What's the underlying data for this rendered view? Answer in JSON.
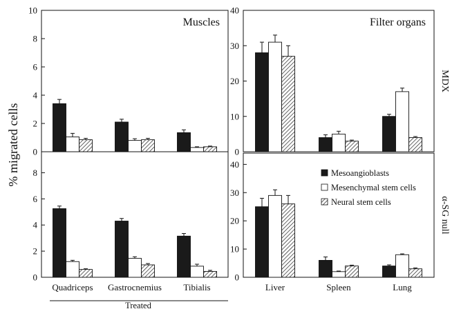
{
  "colors": {
    "mesoangioblasts": "#1a1a1a",
    "mesenchymal": "#ffffff",
    "neural": "hatched"
  },
  "figure": {
    "ylabel": "% migrated cells",
    "treated_label": "Treated"
  },
  "legend": [
    {
      "key": "meso",
      "label": "Mesoangioblasts"
    },
    {
      "key": "mesen",
      "label": "Mesenchymal stem cells"
    },
    {
      "key": "neural",
      "label": "Neural stem cells"
    }
  ],
  "chart_data": [
    {
      "type": "bar",
      "title": "Muscles",
      "panel_row": "MDX",
      "categories": [
        "Quadriceps",
        "Gastrocnemius",
        "Tibialis"
      ],
      "ylim": [
        0,
        10
      ],
      "yticks": [
        "0",
        "2",
        "4",
        "6",
        "8",
        "10"
      ],
      "series": [
        {
          "key": "meso",
          "values": [
            3.4,
            2.1,
            1.35
          ],
          "errors": [
            0.3,
            0.2,
            0.2
          ]
        },
        {
          "key": "mesen",
          "values": [
            1.05,
            0.8,
            0.3
          ],
          "errors": [
            0.25,
            0.12,
            0.05
          ]
        },
        {
          "key": "neural",
          "values": [
            0.85,
            0.85,
            0.35
          ],
          "errors": [
            0.1,
            0.1,
            0.05
          ]
        }
      ]
    },
    {
      "type": "bar",
      "title": "Filter organs",
      "panel_row": "MDX",
      "row_label": "MDX",
      "categories": [
        "Liver",
        "Spleen",
        "Lung"
      ],
      "ylim": [
        0,
        40
      ],
      "yticks": [
        "0",
        "10",
        "20",
        "30",
        "40"
      ],
      "series": [
        {
          "key": "meso",
          "values": [
            28,
            4,
            10
          ],
          "errors": [
            3,
            0.8,
            0.6
          ]
        },
        {
          "key": "mesen",
          "values": [
            31,
            5,
            17
          ],
          "errors": [
            2,
            0.8,
            1
          ]
        },
        {
          "key": "neural",
          "values": [
            27,
            3,
            4
          ],
          "errors": [
            3,
            0.3,
            0.3
          ]
        }
      ]
    },
    {
      "type": "bar",
      "panel_row": "alpha-SG null",
      "categories": [
        "Quadriceps",
        "Gastrocnemius",
        "Tibialis"
      ],
      "ylim": [
        0,
        9.5
      ],
      "yticks": [
        "0",
        "2",
        "4",
        "6",
        "8"
      ],
      "series": [
        {
          "key": "meso",
          "values": [
            5.25,
            4.3,
            3.15
          ],
          "errors": [
            0.2,
            0.2,
            0.2
          ]
        },
        {
          "key": "mesen",
          "values": [
            1.2,
            1.45,
            0.85
          ],
          "errors": [
            0.1,
            0.12,
            0.15
          ]
        },
        {
          "key": "neural",
          "values": [
            0.6,
            0.95,
            0.45
          ],
          "errors": [
            0.05,
            0.1,
            0.08
          ]
        }
      ]
    },
    {
      "type": "bar",
      "panel_row": "alpha-SG null",
      "row_label": "α-SG null",
      "categories": [
        "Liver",
        "Spleen",
        "Lung"
      ],
      "ylim": [
        0,
        44
      ],
      "yticks": [
        "0",
        "10",
        "20",
        "30",
        "40"
      ],
      "series": [
        {
          "key": "meso",
          "values": [
            25,
            6,
            4
          ],
          "errors": [
            3,
            1.2,
            0.4
          ]
        },
        {
          "key": "mesen",
          "values": [
            29,
            2,
            8
          ],
          "errors": [
            2,
            0.2,
            0.3
          ]
        },
        {
          "key": "neural",
          "values": [
            26,
            4,
            3
          ],
          "errors": [
            3,
            0.3,
            0.3
          ]
        }
      ]
    }
  ]
}
